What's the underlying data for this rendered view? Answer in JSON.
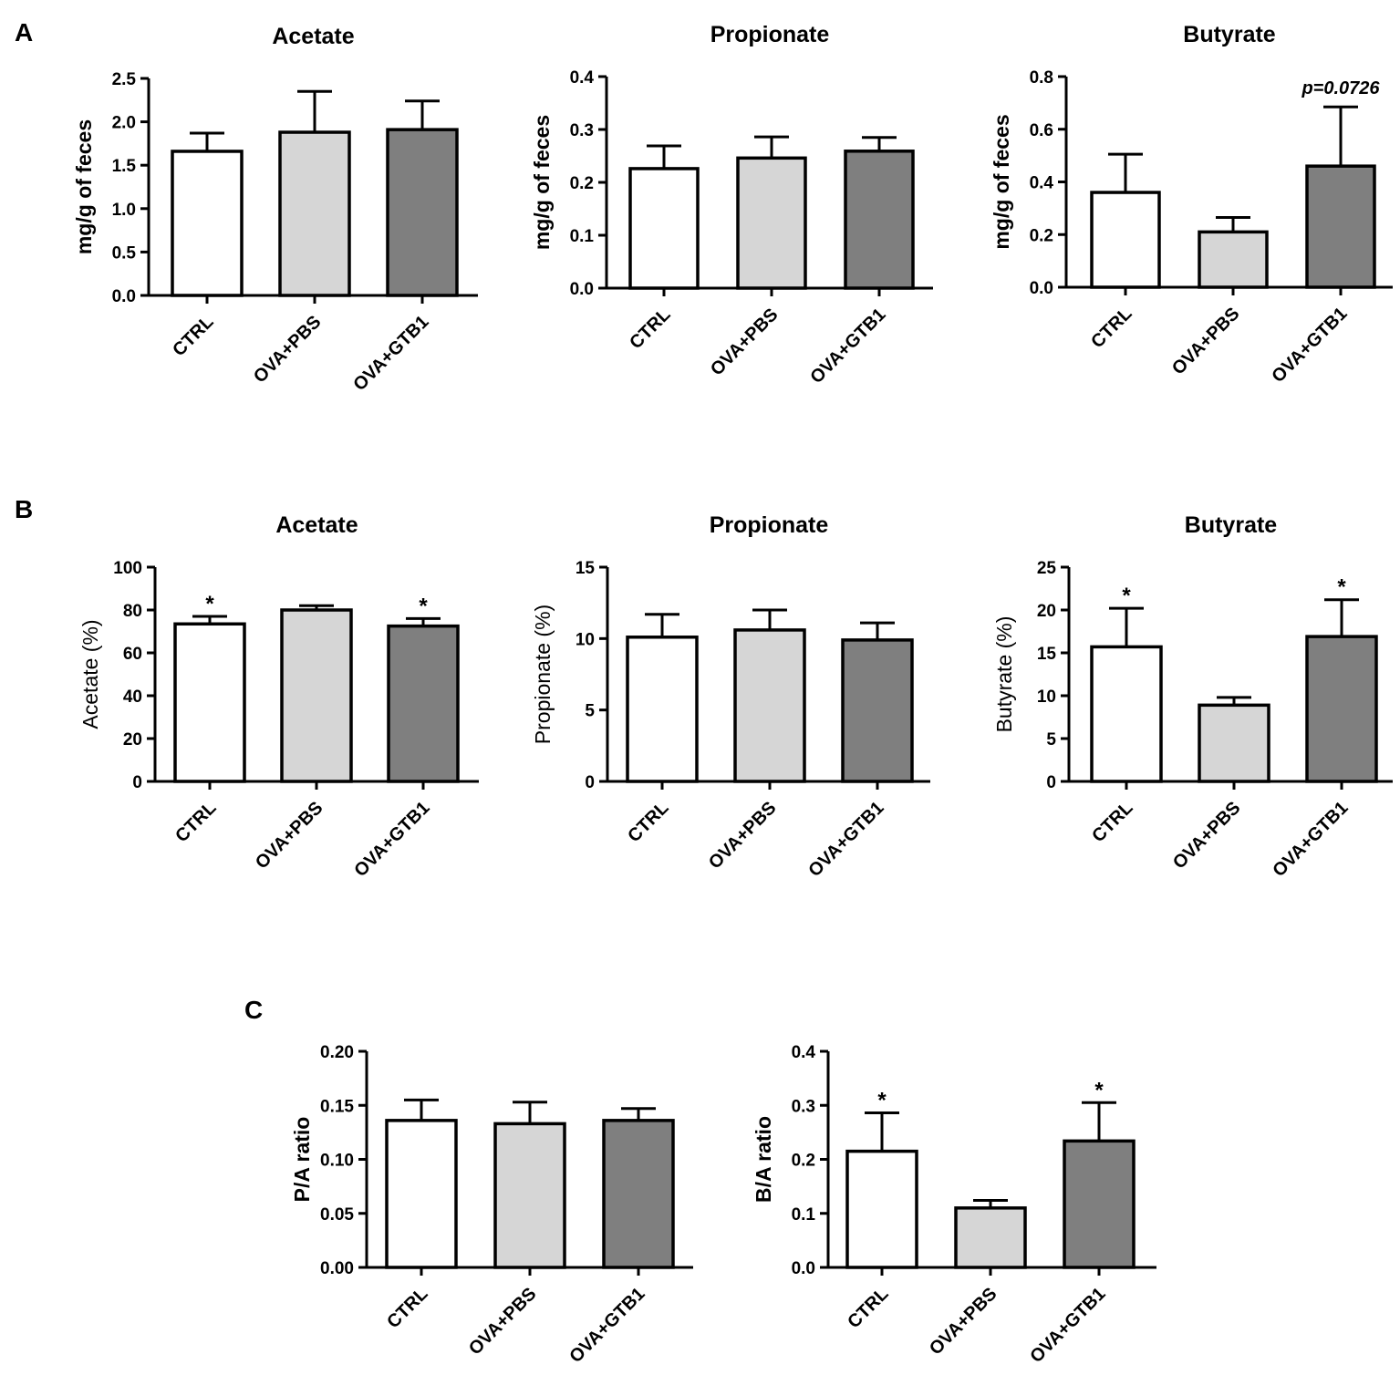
{
  "figure": {
    "panels": [
      {
        "label": "A"
      },
      {
        "label": "B"
      },
      {
        "label": "C"
      }
    ]
  },
  "colors": {
    "ctrl": "#ffffff",
    "ova_pbs": "#d6d6d6",
    "ova_gtb1": "#7f7f7f",
    "stroke": "#000000"
  },
  "chart_data": [
    {
      "panel": "A",
      "type": "bar",
      "title": "Acetate",
      "ylabel": "mg/g of feces",
      "ylabel_bold": true,
      "categories": [
        "CTRL",
        "OVA+PBS",
        "OVA+GTB1"
      ],
      "values": [
        1.66,
        1.88,
        1.91
      ],
      "errors": [
        0.21,
        0.47,
        0.33
      ],
      "ylim": [
        0,
        2.5
      ],
      "yticks": [
        "0.0",
        "0.5",
        "1.0",
        "1.5",
        "2.0",
        "2.5"
      ],
      "annotations": [
        "",
        "",
        ""
      ]
    },
    {
      "panel": "A",
      "type": "bar",
      "title": "Propionate",
      "ylabel": "mg/g of feces",
      "ylabel_bold": true,
      "categories": [
        "CTRL",
        "OVA+PBS",
        "OVA+GTB1"
      ],
      "values": [
        0.226,
        0.246,
        0.259
      ],
      "errors": [
        0.043,
        0.04,
        0.026
      ],
      "ylim": [
        0,
        0.4
      ],
      "yticks": [
        "0.0",
        "0.1",
        "0.2",
        "0.3",
        "0.4"
      ],
      "annotations": [
        "",
        "",
        ""
      ]
    },
    {
      "panel": "A",
      "type": "bar",
      "title": "Butyrate",
      "ylabel": "mg/g of feces",
      "ylabel_bold": true,
      "categories": [
        "CTRL",
        "OVA+PBS",
        "OVA+GTB1"
      ],
      "values": [
        0.36,
        0.21,
        0.46
      ],
      "errors": [
        0.145,
        0.055,
        0.225
      ],
      "ylim": [
        0,
        0.8
      ],
      "yticks": [
        "0.0",
        "0.2",
        "0.4",
        "0.6",
        "0.8"
      ],
      "annotations": [
        "",
        "",
        "p=0.0726"
      ]
    },
    {
      "panel": "B",
      "type": "bar",
      "title": "Acetate",
      "ylabel": "Acetate (%)",
      "ylabel_bold": false,
      "categories": [
        "CTRL",
        "OVA+PBS",
        "OVA+GTB1"
      ],
      "values": [
        73.5,
        80.0,
        72.5
      ],
      "errors": [
        3.5,
        2.0,
        3.5
      ],
      "ylim": [
        0,
        100
      ],
      "yticks": [
        "0",
        "20",
        "40",
        "60",
        "80",
        "100"
      ],
      "annotations": [
        "*",
        "",
        "*"
      ]
    },
    {
      "panel": "B",
      "type": "bar",
      "title": "Propionate",
      "ylabel": "Propionate (%)",
      "ylabel_bold": false,
      "categories": [
        "CTRL",
        "OVA+PBS",
        "OVA+GTB1"
      ],
      "values": [
        10.1,
        10.6,
        9.9
      ],
      "errors": [
        1.6,
        1.4,
        1.2
      ],
      "ylim": [
        0,
        15
      ],
      "yticks": [
        "0",
        "5",
        "10",
        "15"
      ],
      "annotations": [
        "",
        "",
        ""
      ]
    },
    {
      "panel": "B",
      "type": "bar",
      "title": "Butyrate",
      "ylabel": "Butyrate (%)",
      "ylabel_bold": false,
      "categories": [
        "CTRL",
        "OVA+PBS",
        "OVA+GTB1"
      ],
      "values": [
        15.7,
        8.9,
        16.9
      ],
      "errors": [
        4.5,
        0.9,
        4.3
      ],
      "ylim": [
        0,
        25
      ],
      "yticks": [
        "0",
        "5",
        "10",
        "15",
        "20",
        "25"
      ],
      "annotations": [
        "*",
        "",
        "*"
      ]
    },
    {
      "panel": "C",
      "type": "bar",
      "title": "",
      "ylabel": "P/A ratio",
      "ylabel_bold": true,
      "categories": [
        "CTRL",
        "OVA+PBS",
        "OVA+GTB1"
      ],
      "values": [
        0.136,
        0.133,
        0.136
      ],
      "errors": [
        0.019,
        0.02,
        0.011
      ],
      "ylim": [
        0,
        0.2
      ],
      "yticks": [
        "0.00",
        "0.05",
        "0.10",
        "0.15",
        "0.20"
      ],
      "annotations": [
        "",
        "",
        ""
      ]
    },
    {
      "panel": "C",
      "type": "bar",
      "title": "",
      "ylabel": "B/A ratio",
      "ylabel_bold": true,
      "categories": [
        "CTRL",
        "OVA+PBS",
        "OVA+GTB1"
      ],
      "values": [
        0.215,
        0.11,
        0.234
      ],
      "errors": [
        0.071,
        0.014,
        0.071
      ],
      "ylim": [
        0,
        0.4
      ],
      "yticks": [
        "0.0",
        "0.1",
        "0.2",
        "0.3",
        "0.4"
      ],
      "annotations": [
        "*",
        "",
        "*"
      ]
    }
  ]
}
